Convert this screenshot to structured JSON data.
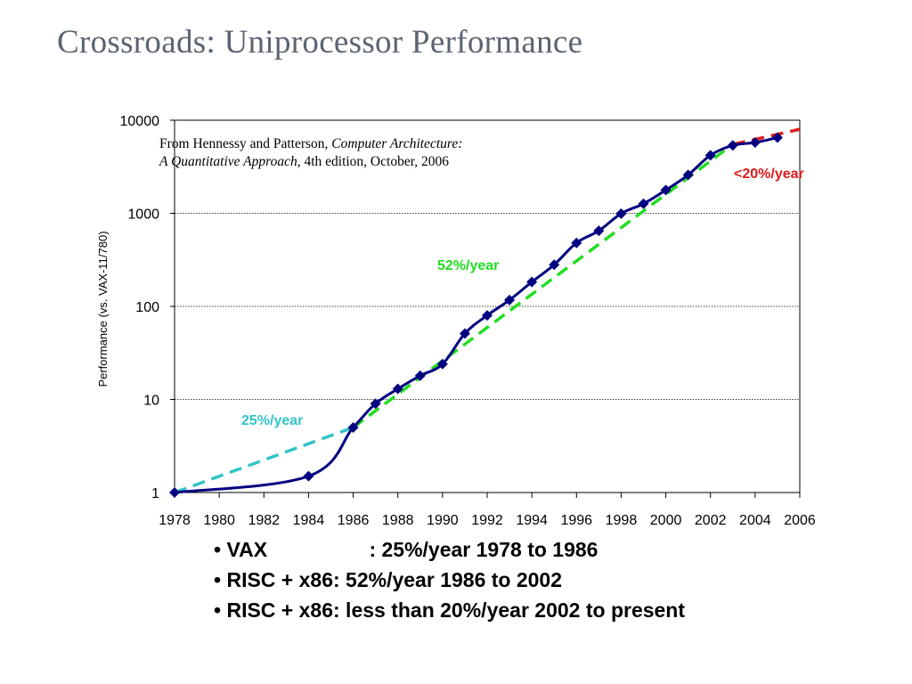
{
  "slide": {
    "title": "Crossroads: Uniprocessor Performance"
  },
  "source_note": {
    "prefix": "From Hennessy and Patterson, ",
    "book_title": "Computer Architecture: A Quantitative Approach",
    "suffix": ", 4th edition, October, 2006"
  },
  "bullets": [
    {
      "label": "VAX",
      "text": ": 25%/year 1978 to 1986"
    },
    {
      "label": "RISC + x86",
      "text": ": 52%/year 1986 to 2002"
    },
    {
      "label": "RISC + x86",
      "text": ": less than 20%/year 2002 to present"
    }
  ],
  "chart_data": {
    "type": "line",
    "title": "",
    "xlabel": "",
    "ylabel": "Performance (vs. VAX-11/780)",
    "y_scale": "log",
    "ylim": [
      1,
      10000
    ],
    "xlim": [
      1978,
      2006
    ],
    "grid": "horizontal",
    "x_ticks": [
      "1978",
      "1980",
      "1982",
      "1984",
      "1986",
      "1988",
      "1990",
      "1992",
      "1994",
      "1996",
      "1998",
      "2000",
      "2002",
      "2004",
      "2006"
    ],
    "y_ticks": [
      "1",
      "10",
      "100",
      "1000",
      "10000"
    ],
    "series": [
      {
        "color": "#000080",
        "marker": "diamond",
        "x": [
          1978,
          1984,
          1986,
          1987,
          1988,
          1989,
          1990,
          1991,
          1992,
          1993,
          1994,
          1995,
          1996,
          1997,
          1998,
          1999,
          2000,
          2001,
          2002,
          2003,
          2004,
          2005
        ],
        "y": [
          1,
          1.5,
          5,
          9,
          13,
          18,
          24,
          51,
          80,
          117,
          183,
          280,
          481,
          649,
          993,
          1267,
          1779,
          2584,
          4195,
          5364,
          5764,
          6505
        ]
      }
    ],
    "trend_lines": [
      {
        "label": "25%/year",
        "color": "#33c4c8",
        "x": [
          1978,
          1986
        ],
        "y": [
          1,
          5
        ]
      },
      {
        "label": "52%/year",
        "color": "#22dd22",
        "x": [
          1986,
          2003
        ],
        "y": [
          5,
          5500
        ]
      },
      {
        "label": "<20%/year",
        "color": "#e01b1b",
        "x": [
          2003,
          2006
        ],
        "y": [
          5500,
          8000
        ]
      }
    ]
  }
}
